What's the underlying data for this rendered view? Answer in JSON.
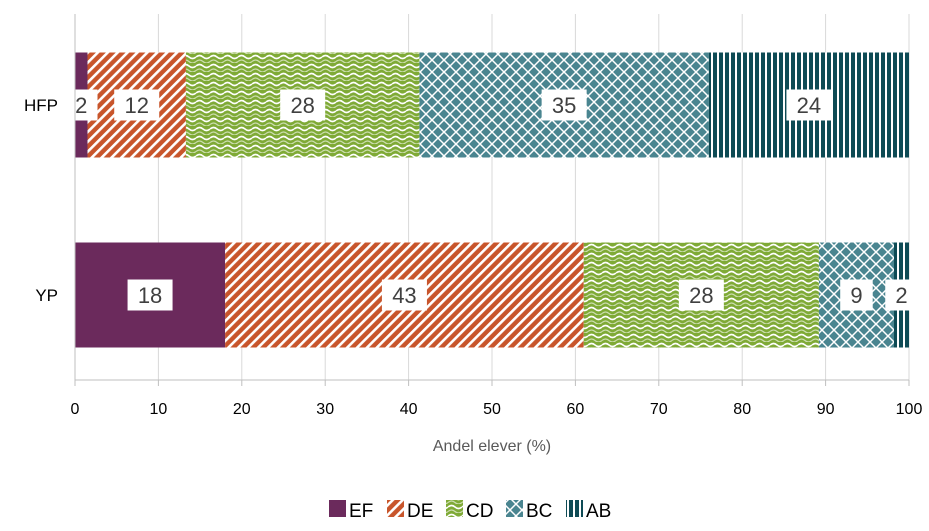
{
  "chart_data": {
    "type": "bar",
    "orientation": "horizontal",
    "stacked": true,
    "categories": [
      "HFP",
      "YP"
    ],
    "series": [
      {
        "name": "EF",
        "values": [
          1.5,
          18
        ],
        "labels": [
          "2",
          "18"
        ],
        "color": "#6B2A5C",
        "pattern": "solid"
      },
      {
        "name": "DE",
        "values": [
          11.8,
          43
        ],
        "labels": [
          "12",
          "43"
        ],
        "color": "#C8552B",
        "pattern": "diagonal-stripes"
      },
      {
        "name": "CD",
        "values": [
          28,
          28.2
        ],
        "labels": [
          "28",
          "28"
        ],
        "color": "#7FAA36",
        "pattern": "waves"
      },
      {
        "name": "BC",
        "values": [
          34.7,
          9
        ],
        "labels": [
          "35",
          "9"
        ],
        "color": "#4A8590",
        "pattern": "crosshatch"
      },
      {
        "name": "AB",
        "values": [
          24,
          1.8
        ],
        "labels": [
          "24",
          "2"
        ],
        "color": "#0E4B55",
        "pattern": "vertical-stripes"
      }
    ],
    "xlim": [
      0,
      100
    ],
    "xticks": [
      "0",
      "10",
      "20",
      "30",
      "40",
      "50",
      "60",
      "70",
      "80",
      "90",
      "100"
    ],
    "xlabel": "Andel elever (%)",
    "ylabel": "",
    "title": "",
    "grid": "vertical",
    "legend": "bottom-center"
  }
}
